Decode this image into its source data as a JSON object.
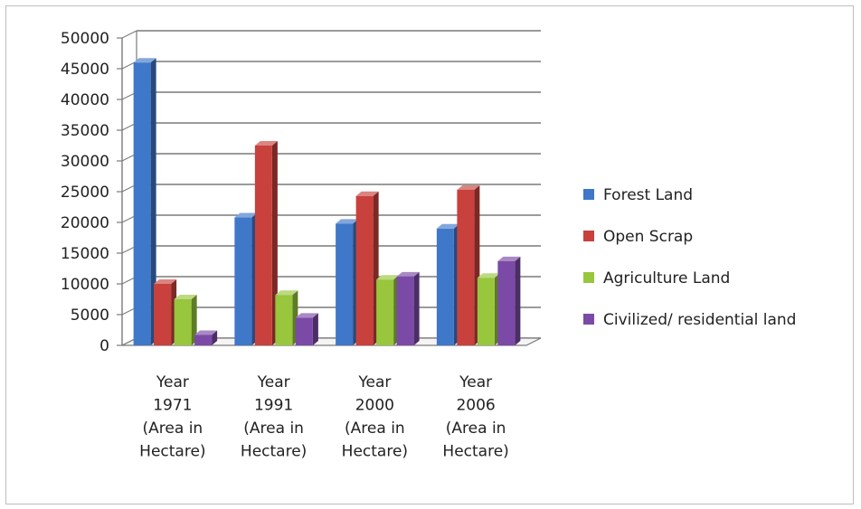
{
  "chart_data": {
    "type": "bar",
    "categories": [
      [
        "Year",
        "1971",
        "(Area in",
        "Hectare)"
      ],
      [
        "Year",
        "1991",
        "(Area in",
        "Hectare)"
      ],
      [
        "Year",
        "2000",
        "(Area in",
        "Hectare)"
      ],
      [
        "Year",
        "2006",
        "(Area in",
        "Hectare)"
      ]
    ],
    "series": [
      {
        "name": "Forest Land",
        "color": "#3f77c9",
        "values": [
          46000,
          20800,
          19800,
          19000
        ]
      },
      {
        "name": "Open Scrap",
        "color": "#c8413c",
        "values": [
          10000,
          32500,
          24300,
          25300
        ]
      },
      {
        "name": "Agriculture Land",
        "color": "#98c63c",
        "values": [
          7500,
          8200,
          10700,
          11000
        ]
      },
      {
        "name": "Civilized/ residential land",
        "color": "#7b4aa6",
        "values": [
          1700,
          4500,
          11200,
          13700
        ]
      }
    ],
    "yticks": [
      0,
      5000,
      10000,
      15000,
      20000,
      25000,
      30000,
      35000,
      40000,
      45000,
      50000
    ],
    "ylim": [
      0,
      50000
    ],
    "grid": true,
    "legend": "right"
  }
}
